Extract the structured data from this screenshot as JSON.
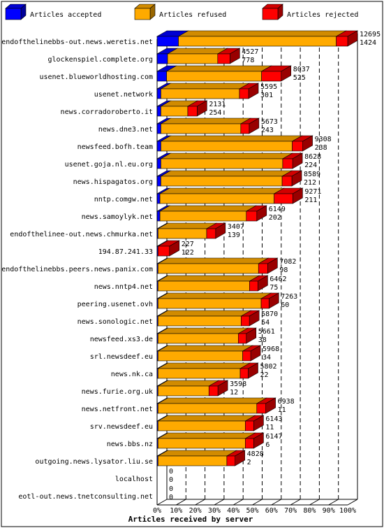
{
  "chart_data": {
    "type": "bar",
    "stacked": true,
    "orientation": "horizontal",
    "xlabel": "Articles received by server",
    "xlim": [
      0,
      100
    ],
    "xticks": [
      "0%",
      "10%",
      "20%",
      "30%",
      "40%",
      "50%",
      "60%",
      "70%",
      "80%",
      "90%",
      "100%"
    ],
    "legend_position": "top",
    "legend": [
      {
        "name": "Articles accepted",
        "color": "#0000ff"
      },
      {
        "name": "Articles refused",
        "color": "#ffaa00"
      },
      {
        "name": "Articles rejected",
        "color": "#ff0000"
      }
    ],
    "grid": "vertical dashed",
    "categories": [
      "endofthelinebbs-out.news.weretis.net",
      "glockenspiel.complete.org",
      "usenet.blueworldhosting.com",
      "usenet.network",
      "news.corradoroberto.it",
      "news.dne3.net",
      "newsfeed.bofh.team",
      "usenet.goja.nl.eu.org",
      "news.hispagatos.org",
      "nntp.comgw.net",
      "news.samoylyk.net",
      "endofthelinee-out.news.chmurka.net",
      "194.87.241.33",
      "endofthelinebbs.peers.news.panix.com",
      "news.nntp4.net",
      "peering.usenet.ovh",
      "news.sonologic.net",
      "newsfeed.xs3.de",
      "srl.newsdeef.eu",
      "news.nk.ca",
      "news.furie.org.uk",
      "news.netfront.net",
      "srv.newsdeef.eu",
      "news.bbs.nz",
      "outgoing.news.lysator.liu.se",
      "localhost",
      "eotl-out.news.tnetconsulting.net"
    ],
    "value_labels": [
      [
        "12695",
        "1424"
      ],
      [
        "4527",
        "778"
      ],
      [
        "8037",
        "525"
      ],
      [
        "5595",
        "301"
      ],
      [
        "2131",
        "254"
      ],
      [
        "5673",
        "243"
      ],
      [
        "9308",
        "238"
      ],
      [
        "8628",
        "224"
      ],
      [
        "8589",
        "212"
      ],
      [
        "9271",
        "211"
      ],
      [
        "6149",
        "202"
      ],
      [
        "3407",
        "139"
      ],
      [
        "227",
        "122"
      ],
      [
        "7082",
        "98"
      ],
      [
        "6462",
        "75"
      ],
      [
        "7263",
        "60"
      ],
      [
        "5870",
        "54"
      ],
      [
        "5661",
        "38"
      ],
      [
        "5968",
        "34"
      ],
      [
        "5802",
        "22"
      ],
      [
        "3598",
        "12"
      ],
      [
        "6938",
        "11"
      ],
      [
        "6143",
        "11"
      ],
      [
        "6147",
        "6"
      ],
      [
        "4828",
        "2"
      ],
      [
        "0",
        "0"
      ],
      [
        "0",
        "0"
      ]
    ],
    "series": [
      {
        "name": "Articles accepted",
        "values": [
          11.2,
          5.5,
          5.0,
          2.0,
          2.0,
          2.0,
          2.0,
          2.0,
          2.0,
          1.5,
          1.5,
          0.5,
          0.5,
          0.5,
          0.5,
          0.5,
          0.5,
          0.5,
          0.5,
          0.5,
          0.5,
          0.5,
          0.5,
          0.5,
          0.5,
          0,
          0
        ]
      },
      {
        "name": "Articles refused",
        "values": [
          82.8,
          26.3,
          49.8,
          41.2,
          14.1,
          41.9,
          68.9,
          63.9,
          63.6,
          59.9,
          45.3,
          25.5,
          0,
          52.7,
          48.0,
          54.1,
          43.6,
          42.1,
          44.4,
          43.1,
          26.7,
          51.8,
          45.8,
          45.8,
          36.1,
          0,
          0
        ]
      },
      {
        "name": "Articles rejected",
        "values": [
          6.0,
          6.4,
          10.3,
          4.8,
          4.9,
          4.4,
          5.5,
          5.2,
          5.1,
          9.8,
          5.5,
          4.7,
          6.0,
          4.8,
          4.4,
          4.1,
          4.3,
          4.2,
          4.2,
          4.2,
          4.7,
          4.7,
          4.4,
          4.4,
          4.3,
          0,
          0
        ]
      }
    ]
  }
}
